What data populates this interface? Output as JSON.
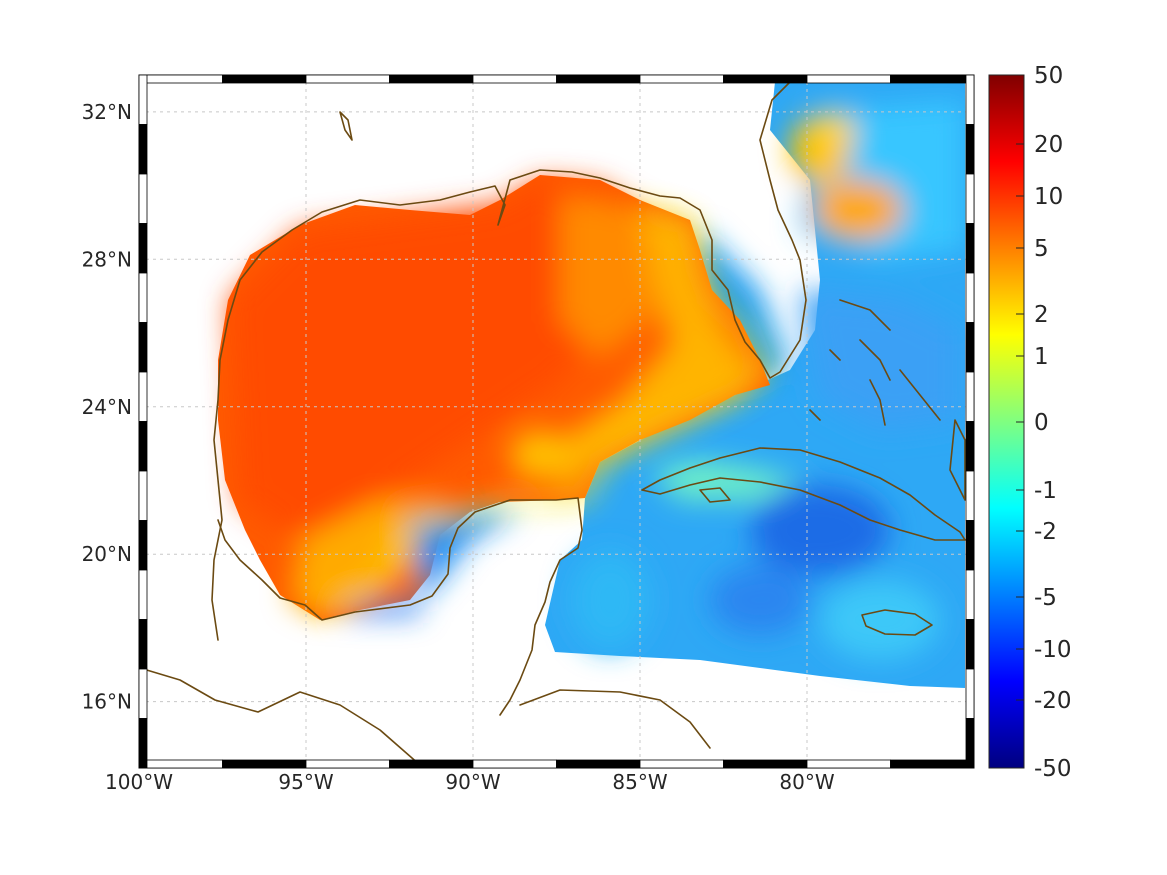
{
  "map": {
    "projection": "equirectangular",
    "lon_range": [
      -100,
      -75
    ],
    "lat_range": [
      14.2,
      33
    ],
    "x_ticks": [
      {
        "lon": -100,
        "label": "100°W"
      },
      {
        "lon": -95,
        "label": "95°W"
      },
      {
        "lon": -90,
        "label": "90°W"
      },
      {
        "lon": -85,
        "label": "85°W"
      },
      {
        "lon": -80,
        "label": "80°W"
      }
    ],
    "y_ticks": [
      {
        "lat": 16,
        "label": "16°N"
      },
      {
        "lat": 20,
        "label": "20°N"
      },
      {
        "lat": 24,
        "label": "24°N"
      },
      {
        "lat": 28,
        "label": "28°N"
      },
      {
        "lat": 32,
        "label": "32°N"
      }
    ],
    "grid": true,
    "frame_style": "black-and-white dashed border",
    "coastline_color": "#6b4a12",
    "field": "diverging field, warm over the Gulf of Mexico, cool over the Caribbean and western Atlantic"
  },
  "colorbar": {
    "orientation": "vertical",
    "position": "right",
    "colormap": "jet",
    "scale": "nonlinear (symmetric log-like)",
    "ticks": [
      "50",
      "20",
      "10",
      "5",
      "2",
      "1",
      "0",
      "-1",
      "-2",
      "-5",
      "-10",
      "-20",
      "-50"
    ],
    "colors": [
      "#800000",
      "#ff0000",
      "#ff8000",
      "#ffff00",
      "#80ff80",
      "#00ffff",
      "#0080ff",
      "#0000ff",
      "#000080"
    ]
  }
}
